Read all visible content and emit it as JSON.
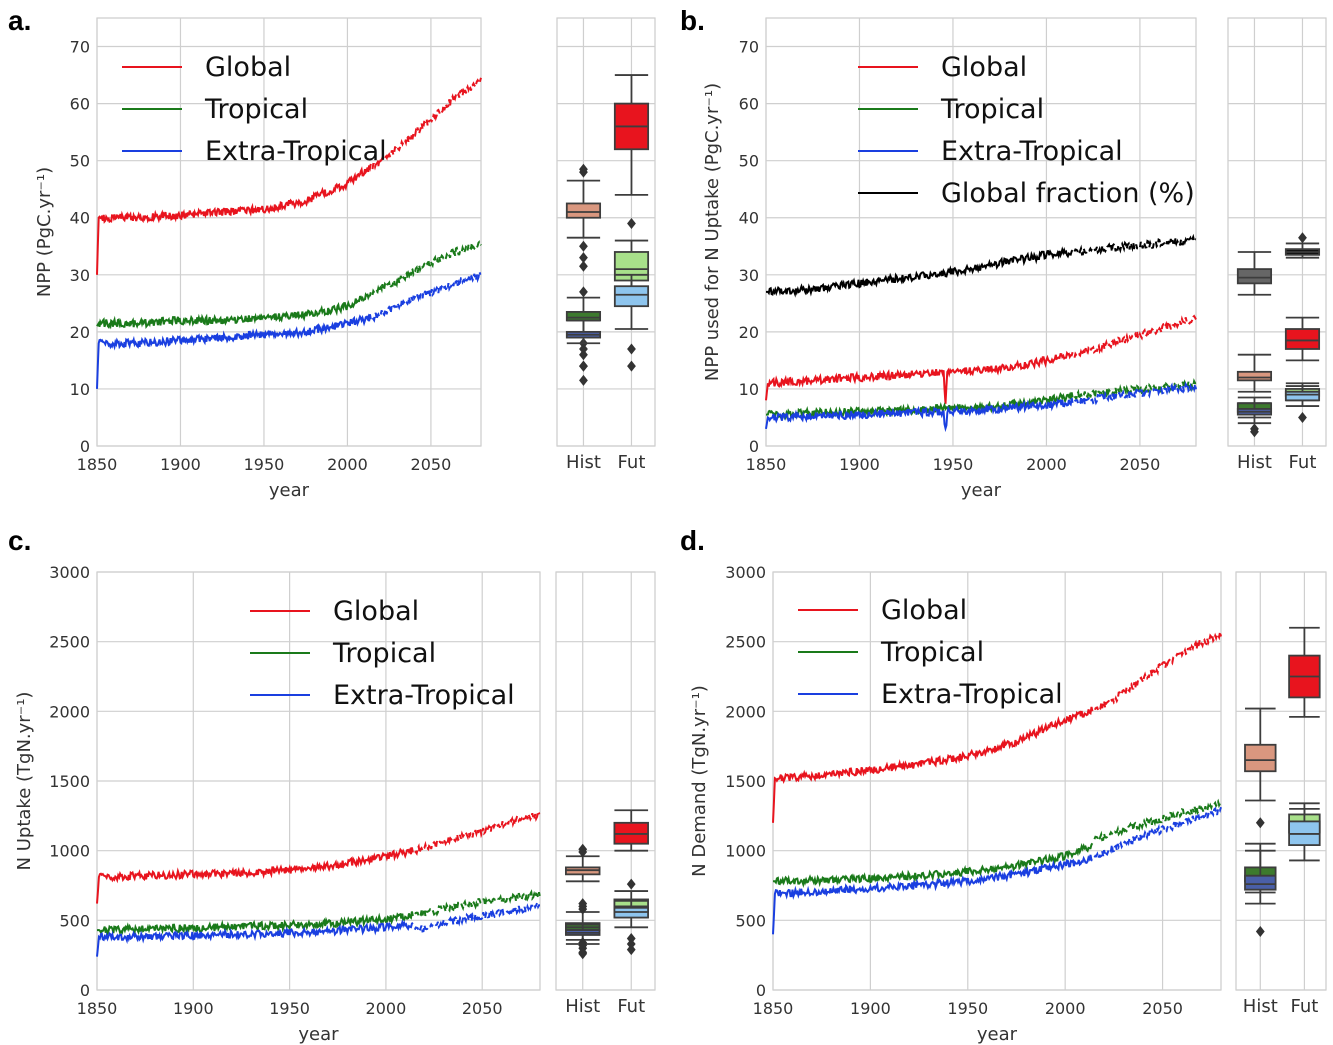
{
  "colors": {
    "Global": "#e8141e",
    "Tropical": "#1a7a1a",
    "Extra-Tropical": "#1a3fe0",
    "Global fraction (%)": "#000000",
    "hist_box": {
      "Global": "#d9977f",
      "Tropical": "#3d7a2e",
      "Extra-Tropical": "#4a5fa8",
      "Global fraction (%)": "#666666"
    },
    "fut_box": {
      "Global": "#e8141e",
      "Tropical": "#a8e08a",
      "Extra-Tropical": "#8ec5ee",
      "Global fraction (%)": "#111111"
    }
  },
  "chart_data": [
    {
      "panel": "a.",
      "type": "line",
      "ylabel": "NPP (PgC.yr⁻¹)",
      "xlabel": "year",
      "xlim": [
        1850,
        2080
      ],
      "ylim": [
        0,
        75
      ],
      "xticks": [
        1850,
        1900,
        1950,
        2000,
        2050
      ],
      "yticks": [
        0,
        10,
        20,
        30,
        40,
        50,
        60,
        70
      ],
      "legend_loc": "upper-left",
      "series": [
        {
          "name": "Global",
          "hist_x": [
            1850,
            1851,
            1875,
            1900,
            1925,
            1950,
            1975,
            2000,
            2014
          ],
          "hist_y": [
            30,
            40,
            40,
            40.5,
            41,
            41.5,
            43,
            46,
            49
          ],
          "fut_x": [
            2015,
            2030,
            2045,
            2060,
            2080
          ],
          "fut_y": [
            49,
            52,
            56,
            60,
            64
          ]
        },
        {
          "name": "Tropical",
          "hist_x": [
            1850,
            1851,
            1875,
            1900,
            1925,
            1950,
            1975,
            2000,
            2014
          ],
          "hist_y": [
            21,
            21.5,
            21.5,
            22,
            22,
            22.5,
            23,
            24.5,
            26.5
          ],
          "fut_x": [
            2015,
            2030,
            2045,
            2060,
            2080
          ],
          "fut_y": [
            27,
            29,
            31.5,
            33.5,
            35.5
          ]
        },
        {
          "name": "Extra-Tropical",
          "hist_x": [
            1850,
            1851,
            1875,
            1900,
            1925,
            1950,
            1975,
            2000,
            2014
          ],
          "hist_y": [
            10,
            18,
            18,
            18.5,
            19,
            19.5,
            20,
            21.5,
            22.5
          ],
          "fut_x": [
            2015,
            2030,
            2045,
            2060,
            2080
          ],
          "fut_y": [
            22.5,
            24.5,
            26.5,
            28,
            30
          ]
        }
      ],
      "boxplot": {
        "categories": [
          "Hist",
          "Fut"
        ],
        "ylim": [
          0,
          75
        ],
        "boxes": [
          {
            "series": "Global",
            "period": "Hist",
            "whislo": 36.5,
            "q1": 40,
            "med": 41,
            "q3": 42.5,
            "whishi": 46.5,
            "fliers": [
              48,
              48.5
            ]
          },
          {
            "series": "Tropical",
            "period": "Hist",
            "whislo": 20,
            "q1": 22,
            "med": 22.5,
            "q3": 23.5,
            "whishi": 26,
            "fliers": [
              18,
              16,
              14,
              27,
              31.5,
              33,
              35
            ]
          },
          {
            "series": "Extra-Tropical",
            "period": "Hist",
            "whislo": 18,
            "q1": 19,
            "med": 19.5,
            "q3": 20,
            "whishi": 22,
            "fliers": [
              17,
              14,
              11.5
            ]
          },
          {
            "series": "Global",
            "period": "Fut",
            "whislo": 44,
            "q1": 52,
            "med": 56,
            "q3": 60,
            "whishi": 65,
            "fliers": []
          },
          {
            "series": "Tropical",
            "period": "Fut",
            "whislo": 26,
            "q1": 29,
            "med": 31,
            "q3": 34,
            "whishi": 36,
            "fliers": [
              39
            ]
          },
          {
            "series": "Extra-Tropical",
            "period": "Fut",
            "whislo": 20.5,
            "q1": 24.5,
            "med": 26.5,
            "q3": 28,
            "whishi": 30,
            "fliers": [
              17,
              14
            ]
          }
        ]
      }
    },
    {
      "panel": "b.",
      "type": "line",
      "ylabel": "NPP used for N Uptake (PgC.yr⁻¹)",
      "xlabel": "year",
      "xlim": [
        1850,
        2080
      ],
      "ylim": [
        0,
        75
      ],
      "xticks": [
        1850,
        1900,
        1950,
        2000,
        2050
      ],
      "yticks": [
        0,
        10,
        20,
        30,
        40,
        50,
        60,
        70
      ],
      "legend_loc": "upper-center",
      "series": [
        {
          "name": "Global",
          "hist_x": [
            1850,
            1851,
            1875,
            1900,
            1925,
            1945,
            1946,
            1947,
            1975,
            2000,
            2014
          ],
          "hist_y": [
            8,
            11,
            11.5,
            12,
            12.5,
            13,
            7.5,
            13,
            13.5,
            15,
            16
          ],
          "fut_x": [
            2015,
            2030,
            2045,
            2060,
            2080
          ],
          "fut_y": [
            16,
            17.5,
            19,
            20.5,
            22.5
          ]
        },
        {
          "name": "Tropical",
          "hist_x": [
            1850,
            1875,
            1900,
            1925,
            1950,
            1975,
            2000,
            2014
          ],
          "hist_y": [
            5.5,
            5.8,
            6,
            6.3,
            6.6,
            7,
            8,
            8.8
          ],
          "fut_x": [
            2015,
            2030,
            2045,
            2060,
            2080
          ],
          "fut_y": [
            8.8,
            9.3,
            9.8,
            10.2,
            10.8
          ]
        },
        {
          "name": "Extra-Tropical",
          "hist_x": [
            1850,
            1851,
            1875,
            1900,
            1925,
            1945,
            1946,
            1947,
            1975,
            2000,
            2014
          ],
          "hist_y": [
            3,
            5,
            5.2,
            5.5,
            5.8,
            6,
            2.5,
            6,
            6.5,
            7.2,
            7.8
          ],
          "fut_x": [
            2015,
            2030,
            2045,
            2060,
            2080
          ],
          "fut_y": [
            7.8,
            8.4,
            9,
            9.7,
            10.5
          ]
        },
        {
          "name": "Global fraction (%)",
          "hist_x": [
            1850,
            1875,
            1900,
            1925,
            1950,
            1975,
            2000,
            2014
          ],
          "hist_y": [
            27,
            27.5,
            28.5,
            29.5,
            30.5,
            32,
            33.5,
            34
          ],
          "fut_x": [
            2015,
            2030,
            2045,
            2060,
            2080
          ],
          "fut_y": [
            34,
            34.5,
            35,
            35.5,
            36
          ]
        }
      ],
      "boxplot": {
        "categories": [
          "Hist",
          "Fut"
        ],
        "ylim": [
          0,
          75
        ],
        "boxes": [
          {
            "series": "Global fraction (%)",
            "period": "Hist",
            "whislo": 26.5,
            "q1": 28.5,
            "med": 29.5,
            "q3": 31,
            "whishi": 34,
            "fliers": []
          },
          {
            "series": "Global",
            "period": "Hist",
            "whislo": 9.5,
            "q1": 11.5,
            "med": 12,
            "q3": 13,
            "whishi": 16,
            "fliers": []
          },
          {
            "series": "Tropical",
            "period": "Hist",
            "whislo": 5,
            "q1": 6,
            "med": 6.5,
            "q3": 7.5,
            "whishi": 8.5,
            "fliers": [
              3
            ]
          },
          {
            "series": "Extra-Tropical",
            "period": "Hist",
            "whislo": 4,
            "q1": 5.5,
            "med": 6,
            "q3": 6.5,
            "whishi": 7.5,
            "fliers": [
              2.5
            ]
          },
          {
            "series": "Global fraction (%)",
            "period": "Fut",
            "whislo": 33,
            "q1": 33.5,
            "med": 34,
            "q3": 34.5,
            "whishi": 35.5,
            "fliers": [
              36.5
            ]
          },
          {
            "series": "Global",
            "period": "Fut",
            "whislo": 15,
            "q1": 17,
            "med": 18.5,
            "q3": 20.5,
            "whishi": 22.5,
            "fliers": []
          },
          {
            "series": "Tropical",
            "period": "Fut",
            "whislo": 8,
            "q1": 8.8,
            "med": 9.5,
            "q3": 10,
            "whishi": 11,
            "fliers": []
          },
          {
            "series": "Extra-Tropical",
            "period": "Fut",
            "whislo": 7,
            "q1": 8,
            "med": 9,
            "q3": 9.5,
            "whishi": 10.5,
            "fliers": [
              5
            ]
          }
        ]
      }
    },
    {
      "panel": "c.",
      "type": "line",
      "ylabel": "N Uptake (TgN.yr⁻¹)",
      "xlabel": "year",
      "xlim": [
        1850,
        2080
      ],
      "ylim": [
        0,
        3000
      ],
      "xticks": [
        1850,
        1900,
        1950,
        2000,
        2050
      ],
      "yticks": [
        0,
        500,
        1000,
        1500,
        2000,
        2500,
        3000
      ],
      "legend_loc": "upper-center",
      "series": [
        {
          "name": "Global",
          "hist_x": [
            1850,
            1851,
            1875,
            1900,
            1925,
            1950,
            1975,
            2000,
            2014
          ],
          "hist_y": [
            620,
            810,
            820,
            830,
            840,
            860,
            900,
            960,
            1000
          ],
          "fut_x": [
            2015,
            2030,
            2045,
            2060,
            2080
          ],
          "fut_y": [
            1000,
            1060,
            1120,
            1190,
            1260
          ]
        },
        {
          "name": "Tropical",
          "hist_x": [
            1850,
            1875,
            1900,
            1925,
            1950,
            1975,
            2000,
            2014
          ],
          "hist_y": [
            430,
            440,
            445,
            455,
            465,
            480,
            510,
            540
          ],
          "fut_x": [
            2015,
            2030,
            2045,
            2060,
            2080
          ],
          "fut_y": [
            545,
            580,
            620,
            650,
            690
          ]
        },
        {
          "name": "Extra-Tropical",
          "hist_x": [
            1850,
            1851,
            1875,
            1900,
            1925,
            1950,
            1975,
            2000,
            2014
          ],
          "hist_y": [
            240,
            380,
            385,
            390,
            400,
            410,
            425,
            450,
            470
          ],
          "fut_x": [
            2015,
            2030,
            2045,
            2060,
            2080
          ],
          "fut_y": [
            430,
            480,
            520,
            560,
            600
          ]
        }
      ],
      "boxplot": {
        "categories": [
          "Hist",
          "Fut"
        ],
        "ylim": [
          0,
          3000
        ],
        "boxes": [
          {
            "series": "Global",
            "period": "Hist",
            "whislo": 780,
            "q1": 830,
            "med": 860,
            "q3": 880,
            "whishi": 960,
            "fliers": [
              990,
              1010
            ]
          },
          {
            "series": "Tropical",
            "period": "Hist",
            "whislo": 330,
            "q1": 430,
            "med": 450,
            "q3": 480,
            "whishi": 560,
            "fliers": [
              580,
              600,
              620,
              300,
              260
            ]
          },
          {
            "series": "Extra-Tropical",
            "period": "Hist",
            "whislo": 360,
            "q1": 395,
            "med": 410,
            "q3": 430,
            "whishi": 470,
            "fliers": [
              340,
              320,
              270
            ]
          },
          {
            "series": "Global",
            "period": "Fut",
            "whislo": 1000,
            "q1": 1050,
            "med": 1120,
            "q3": 1200,
            "whishi": 1290,
            "fliers": []
          },
          {
            "series": "Tropical",
            "period": "Fut",
            "whislo": 520,
            "q1": 560,
            "med": 600,
            "q3": 650,
            "whishi": 710,
            "fliers": [
              760
            ]
          },
          {
            "series": "Extra-Tropical",
            "period": "Fut",
            "whislo": 450,
            "q1": 520,
            "med": 560,
            "q3": 590,
            "whishi": 640,
            "fliers": [
              370,
              330,
              290
            ]
          }
        ]
      }
    },
    {
      "panel": "d.",
      "type": "line",
      "ylabel": "N Demand (TgN.yr⁻¹)",
      "xlabel": "year",
      "xlim": [
        1850,
        2080
      ],
      "ylim": [
        0,
        3000
      ],
      "xticks": [
        1850,
        1900,
        1950,
        2000,
        2050
      ],
      "yticks": [
        0,
        500,
        1000,
        1500,
        2000,
        2500,
        3000
      ],
      "legend_loc": "upper-left",
      "series": [
        {
          "name": "Global",
          "hist_x": [
            1850,
            1851,
            1875,
            1900,
            1925,
            1950,
            1975,
            2000,
            2014
          ],
          "hist_y": [
            1200,
            1520,
            1540,
            1580,
            1620,
            1680,
            1780,
            1940,
            2010
          ],
          "fut_x": [
            2015,
            2030,
            2045,
            2060,
            2080
          ],
          "fut_y": [
            2010,
            2130,
            2280,
            2420,
            2560
          ]
        },
        {
          "name": "Tropical",
          "hist_x": [
            1850,
            1875,
            1900,
            1925,
            1950,
            1975,
            2000,
            2014
          ],
          "hist_y": [
            780,
            790,
            800,
            820,
            850,
            890,
            960,
            1040
          ],
          "fut_x": [
            2015,
            2030,
            2045,
            2060,
            2080
          ],
          "fut_y": [
            1080,
            1150,
            1210,
            1270,
            1330
          ]
        },
        {
          "name": "Extra-Tropical",
          "hist_x": [
            1850,
            1851,
            1875,
            1900,
            1925,
            1950,
            1975,
            2000,
            2014
          ],
          "hist_y": [
            400,
            690,
            710,
            730,
            750,
            780,
            830,
            900,
            950
          ],
          "fut_x": [
            2015,
            2030,
            2045,
            2060,
            2080
          ],
          "fut_y": [
            960,
            1050,
            1130,
            1200,
            1290
          ]
        }
      ],
      "boxplot": {
        "categories": [
          "Hist",
          "Fut"
        ],
        "ylim": [
          0,
          3000
        ],
        "boxes": [
          {
            "series": "Global",
            "period": "Hist",
            "whislo": 1360,
            "q1": 1570,
            "med": 1650,
            "q3": 1760,
            "whishi": 2020,
            "fliers": []
          },
          {
            "series": "Tropical",
            "period": "Hist",
            "whislo": 700,
            "q1": 780,
            "med": 820,
            "q3": 880,
            "whishi": 1050,
            "fliers": [
              1200
            ]
          },
          {
            "series": "Extra-Tropical",
            "period": "Hist",
            "whislo": 620,
            "q1": 720,
            "med": 760,
            "q3": 820,
            "whishi": 1000,
            "fliers": [
              420
            ]
          },
          {
            "series": "Global",
            "period": "Fut",
            "whislo": 1960,
            "q1": 2100,
            "med": 2250,
            "q3": 2400,
            "whishi": 2600,
            "fliers": []
          },
          {
            "series": "Tropical",
            "period": "Fut",
            "whislo": 1050,
            "q1": 1130,
            "med": 1190,
            "q3": 1260,
            "whishi": 1340,
            "fliers": []
          },
          {
            "series": "Extra-Tropical",
            "period": "Fut",
            "whislo": 930,
            "q1": 1040,
            "med": 1120,
            "q3": 1210,
            "whishi": 1300,
            "fliers": []
          }
        ]
      }
    }
  ]
}
